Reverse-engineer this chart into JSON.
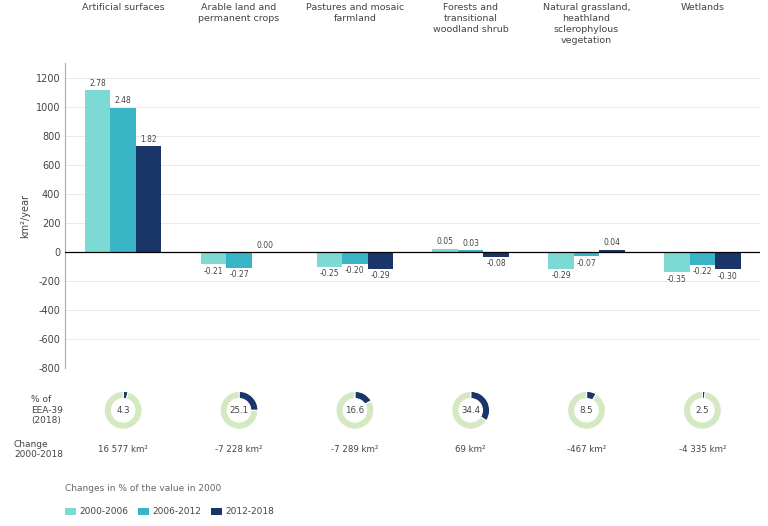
{
  "categories": [
    "Artificial surfaces",
    "Arable land and\npermanent crops",
    "Pastures and mosaic\nfarmland",
    "Forests and\ntransitional\nwoodland shrub",
    "Natural grassland,\nheathland\nsclerophylous\nvegetation",
    "Wetlands"
  ],
  "bar_values": {
    "2000-2006": [
      2.78,
      -0.21,
      -0.25,
      0.05,
      -0.29,
      -0.35
    ],
    "2006-2012": [
      2.48,
      -0.27,
      -0.2,
      0.03,
      -0.07,
      -0.22
    ],
    "2012-2018": [
      1.82,
      0.0,
      -0.29,
      -0.08,
      0.04,
      -0.3
    ]
  },
  "bar_colors": {
    "2000-2006": "#7dd9d4",
    "2006-2012": "#3ab5c6",
    "2012-2018": "#1a3668"
  },
  "bar_scale": 400,
  "ylim": [
    -800,
    1300
  ],
  "yticks": [
    -800,
    -600,
    -400,
    -200,
    0,
    200,
    400,
    600,
    800,
    1000,
    1200
  ],
  "ylabel": "km²/year",
  "donut_percentages": [
    4.3,
    25.1,
    16.6,
    34.4,
    8.5,
    2.5
  ],
  "change_labels": [
    "16 577 km²",
    "-7 228 km²",
    "-7 289 km²",
    "69 km²",
    "-467 km²",
    "-4 335 km²"
  ],
  "donut_color_light": "#d4e8c2",
  "donut_color_dark": "#1a3668",
  "legend_labels": [
    "2000-2006",
    "2006-2012",
    "2012-2018"
  ],
  "legend_colors": [
    "#7dd9d4",
    "#3ab5c6",
    "#1a3668"
  ],
  "footnote": "Changes in % of the value in 2000",
  "bg_color": "#ffffff",
  "text_color": "#444444",
  "grid_color": "#e0e0e0",
  "spine_color": "#aaaaaa"
}
